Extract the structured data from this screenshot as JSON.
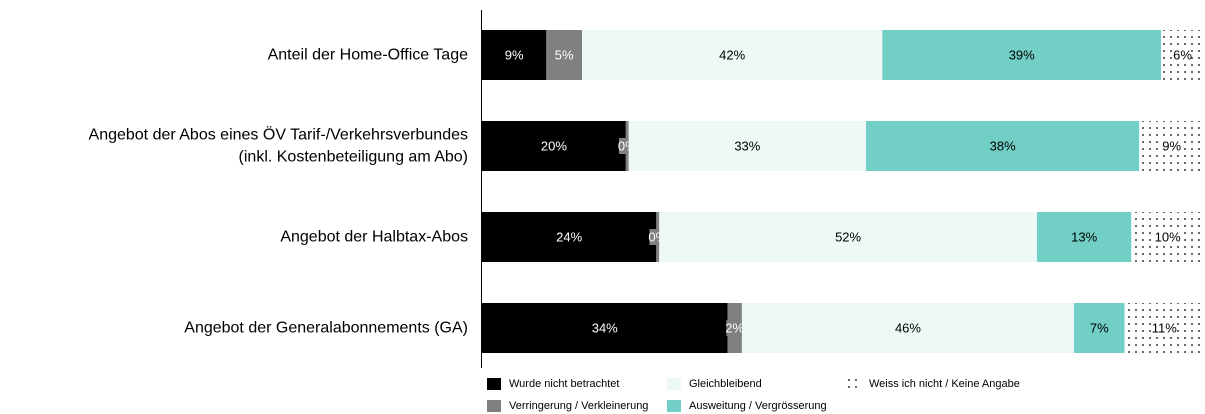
{
  "chart_data": {
    "type": "bar",
    "orientation": "horizontal",
    "stacked": true,
    "categories": [
      [
        "Anteil der Home-Office Tage"
      ],
      [
        "Angebot der Abos eines ÖV Tarif-/Verkehrsverbundes",
        "(inkl. Kostenbeteiligung am Abo)"
      ],
      [
        "Angebot der Halbtax-Abos"
      ],
      [
        "Angebot der Generalabonnements (GA)"
      ]
    ],
    "series": [
      {
        "name": "Wurde nicht betrachtet",
        "values": [
          9,
          20,
          24,
          34
        ],
        "labels": [
          "9%",
          "20%",
          "24%",
          "34%"
        ],
        "color": "#000000",
        "text_color": "#ffffff",
        "pattern": "solid"
      },
      {
        "name": "Verringerung / Verkleinerung",
        "values": [
          5,
          0.4,
          0.4,
          2
        ],
        "labels": [
          "5%",
          "0%",
          "0%",
          "2%"
        ],
        "color": "#808080",
        "text_color": "#ffffff",
        "pattern": "solid"
      },
      {
        "name": "Gleichbleibend",
        "values": [
          42,
          33,
          52,
          46
        ],
        "labels": [
          "42%",
          "33%",
          "52%",
          "46%"
        ],
        "color": "#edf8f7",
        "text_color": "#000000",
        "pattern": "solid"
      },
      {
        "name": "Ausweitung / Vergrösserung",
        "values": [
          39,
          38,
          13,
          7
        ],
        "labels": [
          "39%",
          "38%",
          "13%",
          "7%"
        ],
        "color": "#71cfc6",
        "text_color": "#000000",
        "pattern": "solid"
      },
      {
        "name": "Weiss ich nicht / Keine Angabe",
        "values": [
          6,
          9,
          10,
          11
        ],
        "labels": [
          "6%",
          "9%",
          "10%",
          "11%"
        ],
        "color": "#ffffff",
        "text_color": "#000000",
        "pattern": "dots"
      }
    ],
    "xlim": [
      0,
      100
    ],
    "legend_position": "bottom",
    "grid": false
  }
}
